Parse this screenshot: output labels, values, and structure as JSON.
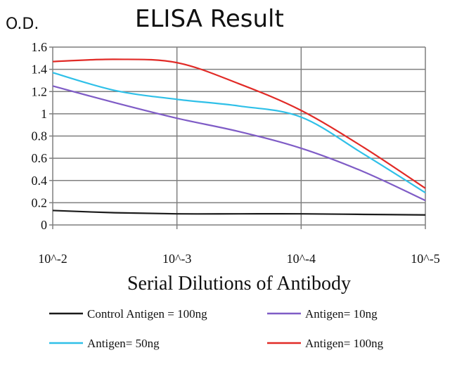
{
  "chart_data": {
    "type": "line",
    "title": "ELISA Result",
    "ylabel": "O.D.",
    "xlabel": "Serial Dilutions of Antibody",
    "x_ticks": [
      "10^-2",
      "10^-3",
      "10^-4",
      "10^-5"
    ],
    "y_ticks": [
      "0",
      "0.2",
      "0.4",
      "0.6",
      "0.8",
      "1",
      "1.2",
      "1.4",
      "1.6"
    ],
    "ylim": [
      0,
      1.6
    ],
    "grid": true,
    "legend_position": "bottom",
    "series": [
      {
        "name": "Control Antigen = 100ng",
        "color": "#1a1a1a",
        "points": [
          [
            0,
            0.13
          ],
          [
            0.5,
            0.11
          ],
          [
            1,
            0.1
          ],
          [
            1.5,
            0.1
          ],
          [
            2,
            0.1
          ],
          [
            2.5,
            0.095
          ],
          [
            3,
            0.09
          ]
        ]
      },
      {
        "name": "Antigen= 10ng",
        "color": "#7f5cc6",
        "points": [
          [
            0,
            1.25
          ],
          [
            0.5,
            1.1
          ],
          [
            1,
            0.96
          ],
          [
            1.5,
            0.84
          ],
          [
            2,
            0.69
          ],
          [
            2.5,
            0.48
          ],
          [
            3,
            0.22
          ]
        ]
      },
      {
        "name": "Antigen= 50ng",
        "color": "#2fc0e8",
        "points": [
          [
            0,
            1.37
          ],
          [
            0.5,
            1.21
          ],
          [
            1,
            1.13
          ],
          [
            1.5,
            1.07
          ],
          [
            2,
            0.97
          ],
          [
            2.5,
            0.64
          ],
          [
            3,
            0.29
          ]
        ]
      },
      {
        "name": "Antigen= 100ng",
        "color": "#e12a26",
        "points": [
          [
            0,
            1.47
          ],
          [
            0.5,
            1.49
          ],
          [
            1,
            1.46
          ],
          [
            1.5,
            1.27
          ],
          [
            2,
            1.03
          ],
          [
            2.5,
            0.7
          ],
          [
            3,
            0.33
          ]
        ]
      }
    ]
  }
}
